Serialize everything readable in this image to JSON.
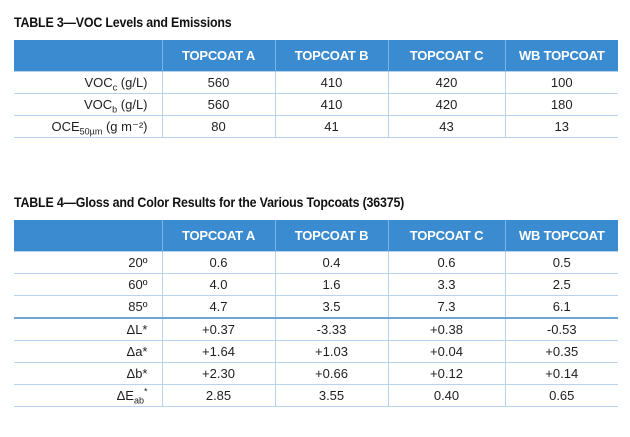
{
  "table3": {
    "caption": "TABLE 3—VOC Levels and Emissions",
    "headers": [
      "",
      "TOPCOAT A",
      "TOPCOAT B",
      "TOPCOAT C",
      "WB TOPCOAT"
    ],
    "rows": [
      {
        "label": {
          "base": "VOC",
          "sub": "c",
          "sup": "",
          "tail": " (g/L)"
        },
        "values": [
          "560",
          "410",
          "420",
          "100"
        ]
      },
      {
        "label": {
          "base": "VOC",
          "sub": "b",
          "sup": "",
          "tail": " (g/L)"
        },
        "values": [
          "560",
          "410",
          "420",
          "180"
        ]
      },
      {
        "label": {
          "base": "OCE",
          "sub": "50µm",
          "sup": "",
          "tail": " (g m⁻²)"
        },
        "values": [
          "80",
          "41",
          "43",
          "13"
        ]
      }
    ]
  },
  "table4": {
    "caption": "TABLE 4—Gloss and Color Results for the Various Topcoats (36375)",
    "headers": [
      "",
      "TOPCOAT A",
      "TOPCOAT B",
      "TOPCOAT C",
      "WB TOPCOAT"
    ],
    "rows": [
      {
        "label": {
          "base": "20º",
          "sub": "",
          "sup": "",
          "tail": ""
        },
        "values": [
          "0.6",
          "0.4",
          "0.6",
          "0.5"
        ]
      },
      {
        "label": {
          "base": "60º",
          "sub": "",
          "sup": "",
          "tail": ""
        },
        "values": [
          "4.0",
          "1.6",
          "3.3",
          "2.5"
        ]
      },
      {
        "label": {
          "base": "85º",
          "sub": "",
          "sup": "",
          "tail": ""
        },
        "values": [
          "4.7",
          "3.5",
          "7.3",
          "6.1"
        ]
      },
      {
        "label": {
          "base": "ΔL*",
          "sub": "",
          "sup": "",
          "tail": ""
        },
        "values": [
          "+0.37",
          "-3.33",
          "+0.38",
          "-0.53"
        ]
      },
      {
        "label": {
          "base": "Δa*",
          "sub": "",
          "sup": "",
          "tail": ""
        },
        "values": [
          "+1.64",
          "+1.03",
          "+0.04",
          "+0.35"
        ]
      },
      {
        "label": {
          "base": "Δb*",
          "sub": "",
          "sup": "",
          "tail": ""
        },
        "values": [
          "+2.30",
          "+0.66",
          "+0.12",
          "+0.14"
        ]
      },
      {
        "label": {
          "base": "ΔE",
          "sub": "ab",
          "sup": "*",
          "tail": ""
        },
        "values": [
          "2.85",
          "3.55",
          "0.40",
          "0.65"
        ]
      }
    ]
  },
  "colors": {
    "header_bg": "#3b8bd0",
    "grid": "#b7d3ee",
    "text": "#1f1f1f"
  }
}
